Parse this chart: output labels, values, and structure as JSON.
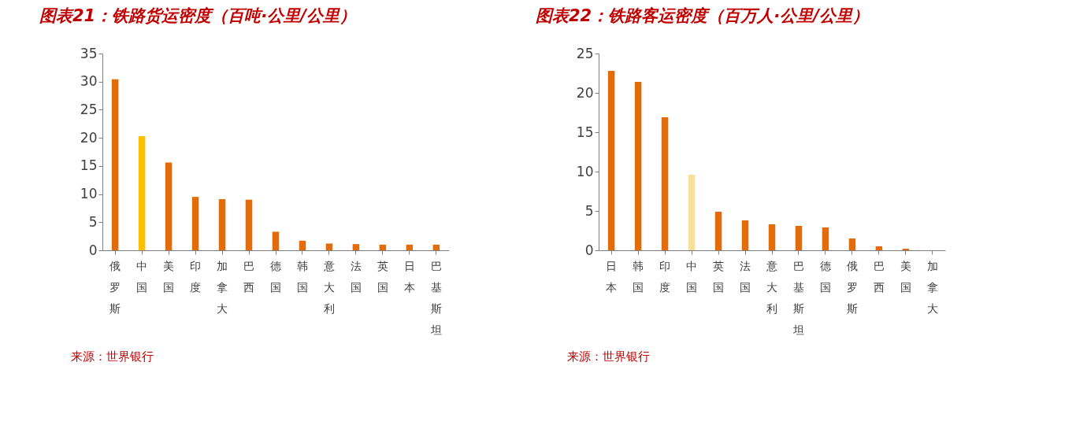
{
  "chart_data": [
    {
      "type": "bar",
      "title": "图表21：铁路货运密度（百吨·公里/公里）",
      "categories": [
        "俄罗斯",
        "中国",
        "美国",
        "印度",
        "加拿大",
        "巴西",
        "德国",
        "韩国",
        "意大利",
        "法国",
        "英国",
        "日本",
        "巴基斯坦"
      ],
      "values": [
        30.4,
        20.3,
        15.6,
        9.5,
        9.1,
        9.0,
        3.3,
        1.7,
        1.2,
        1.1,
        1.0,
        1.0,
        1.0
      ],
      "colors": [
        "#e36c0a",
        "#ffc000",
        "#e36c0a",
        "#e36c0a",
        "#e36c0a",
        "#e36c0a",
        "#e36c0a",
        "#e36c0a",
        "#e36c0a",
        "#e36c0a",
        "#e36c0a",
        "#e36c0a",
        "#e36c0a"
      ],
      "ylim": [
        0,
        35
      ],
      "yticks": [
        0,
        5,
        10,
        15,
        20,
        25,
        30,
        35
      ],
      "grid": false,
      "legend": false,
      "annotations": [
        "来源：世界银行"
      ]
    },
    {
      "type": "bar",
      "title": "图表22：铁路客运密度（百万人·公里/公里）",
      "categories": [
        "日本",
        "韩国",
        "印度",
        "中国",
        "英国",
        "法国",
        "意大利",
        "巴基斯坦",
        "德国",
        "俄罗斯",
        "巴西",
        "美国",
        "加拿大"
      ],
      "values": [
        22.8,
        21.4,
        16.9,
        9.6,
        4.9,
        3.8,
        3.3,
        3.1,
        2.9,
        1.5,
        0.5,
        0.2,
        0.0
      ],
      "colors": [
        "#e36c0a",
        "#e36c0a",
        "#e36c0a",
        "#fadf9a",
        "#e36c0a",
        "#e36c0a",
        "#e36c0a",
        "#e36c0a",
        "#e36c0a",
        "#e36c0a",
        "#e36c0a",
        "#e36c0a",
        "#e36c0a"
      ],
      "ylim": [
        0,
        25
      ],
      "yticks": [
        0,
        5,
        10,
        15,
        20,
        25
      ],
      "grid": false,
      "legend": false,
      "annotations": [
        "来源：世界银行"
      ]
    }
  ]
}
